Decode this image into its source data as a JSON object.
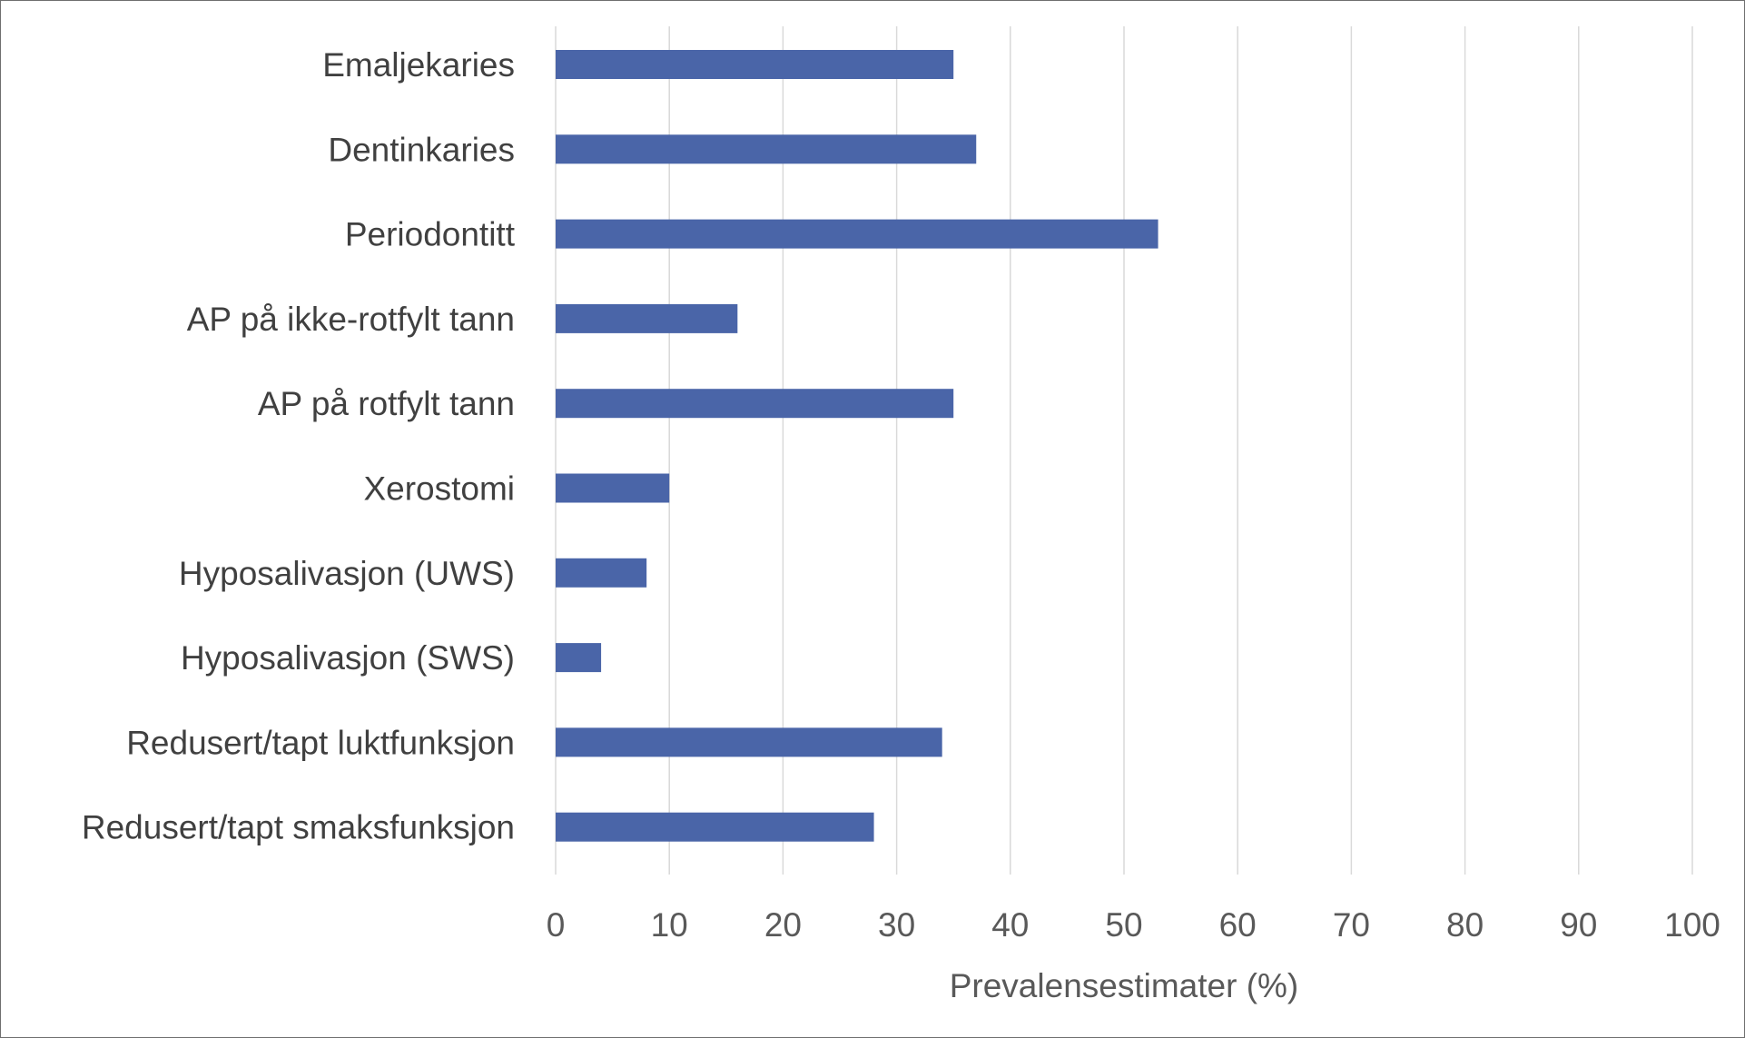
{
  "chart_data": {
    "type": "bar",
    "orientation": "horizontal",
    "categories": [
      "Emaljekaries",
      "Dentinkaries",
      "Periodontitt",
      "AP på ikke-rotfylt tann",
      "AP på rotfylt tann",
      "Xerostomi",
      "Hyposalivasjon (UWS)",
      "Hyposalivasjon (SWS)",
      "Redusert/tapt luktfunksjon",
      "Redusert/tapt smaksfunksjon"
    ],
    "values": [
      35,
      37,
      53,
      16,
      35,
      10,
      8,
      4,
      34,
      28
    ],
    "xlabel": "Prevalensestimater (%)",
    "ylabel": "",
    "xlim": [
      0,
      100
    ],
    "xticks": [
      0,
      10,
      20,
      30,
      40,
      50,
      60,
      70,
      80,
      90,
      100
    ],
    "grid": "vertical",
    "legend": "none",
    "colors": {
      "bar": "#4a65a8",
      "grid": "#d9d9d9"
    }
  }
}
